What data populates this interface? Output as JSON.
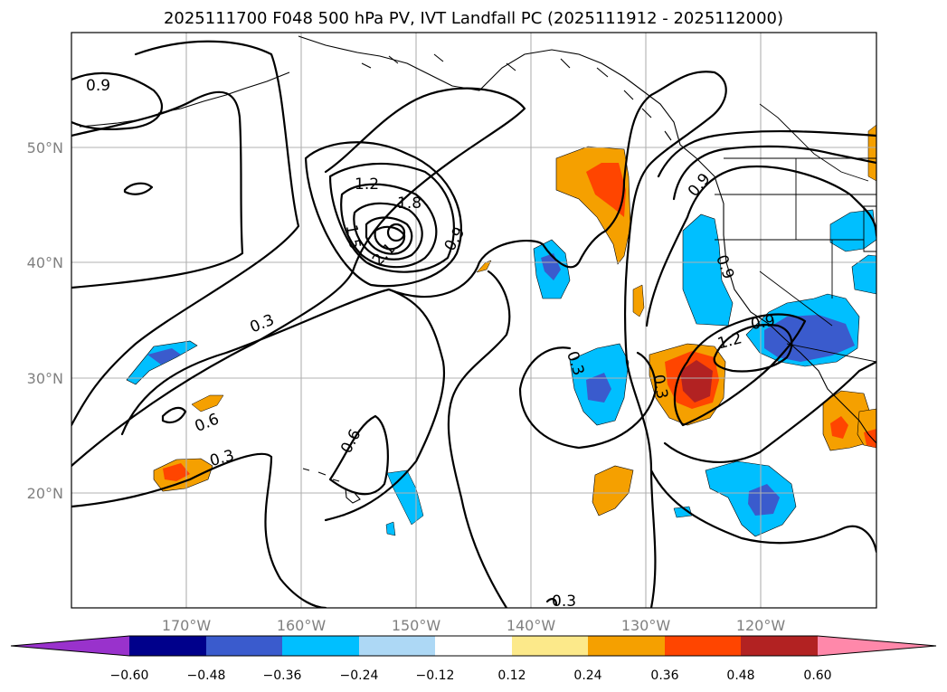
{
  "title": "2025111700 F048 500 hPa PV, IVT Landfall PC (2025111912 - 2025112000)",
  "map": {
    "lon_range": [
      -180,
      -110
    ],
    "lat_range": [
      10,
      60
    ],
    "lat_ticks": [
      {
        "value": 50,
        "label": "50°N"
      },
      {
        "value": 40,
        "label": "40°N"
      },
      {
        "value": 30,
        "label": "30°N"
      },
      {
        "value": 20,
        "label": "20°N"
      }
    ],
    "lon_ticks": [
      {
        "value": -170,
        "label": "170°W"
      },
      {
        "value": -160,
        "label": "160°W"
      },
      {
        "value": -150,
        "label": "150°W"
      },
      {
        "value": -140,
        "label": "140°W"
      },
      {
        "value": -130,
        "label": "130°W"
      },
      {
        "value": -120,
        "label": "120°W"
      }
    ]
  },
  "pv_contour_labels": [
    "0.9",
    "1.2",
    "1.8",
    "1.5",
    "2.1",
    "0.9",
    "0.3",
    "0.6",
    "0.3",
    "0.6",
    "0.3",
    "0.3",
    "0.9",
    "0.9",
    "1.2",
    "0.9",
    "0.3"
  ],
  "colorbar": {
    "ticks": [
      "−0.60",
      "−0.48",
      "−0.36",
      "−0.24",
      "−0.12",
      "0.12",
      "0.24",
      "0.36",
      "0.48",
      "0.60"
    ],
    "colors": {
      "under": "#9932cc",
      "bins": [
        "#00008b",
        "#3a5bcd",
        "#00bfff",
        "#add8f5",
        "#ffffff",
        "#fce98a",
        "#f5a000",
        "#ff4500",
        "#b22222"
      ],
      "over": "#ff88aa"
    }
  }
}
